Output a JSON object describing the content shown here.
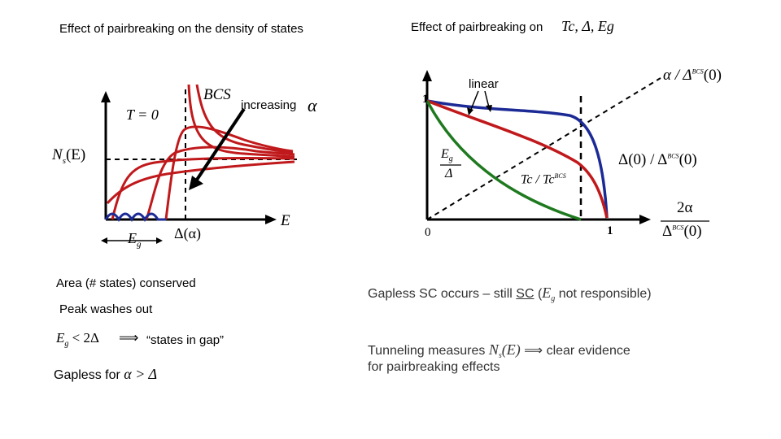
{
  "left_panel": {
    "title": "Effect of pairbreaking on the density of states",
    "ylabel_Ns": "N",
    "ylabel_s": "s",
    "ylabel_E": "(E)",
    "T0_label": "T = 0",
    "BCS_label": "BCS",
    "increasing_label": "increasing",
    "alpha_symbol": "α",
    "E_label": "E",
    "Eg_label": "E",
    "Eg_sub": "g",
    "Delta_alpha_label": "Δ(α)"
  },
  "right_panel": {
    "title": "Effect of pairbreaking on",
    "title_math": "Tc, Δ, Eg",
    "linear_label": "linear",
    "one_y": "1",
    "zero": "0",
    "one_x": "1",
    "Eg_frac_top": "E",
    "Eg_frac_sub": "g",
    "Eg_frac_bottom": "Δ",
    "Tc_ratio": "Tc / Tc",
    "Tc_ratio_sup": "BCS",
    "alpha_ratio": "α / Δ",
    "alpha_ratio_sup": "BCS",
    "alpha_ratio_tail": "(0)",
    "delta_ratio": "Δ(0) / Δ",
    "delta_ratio_sup": "BCS",
    "delta_ratio_tail": "(0)",
    "xaxis_num": "2α",
    "xaxis_den": "Δ",
    "xaxis_den_sup": "BCS",
    "xaxis_den_tail": "(0)"
  },
  "notes_left": {
    "area": "Area (# states) conserved",
    "peak": "Peak washes out",
    "eg_ineq_lhs": "E",
    "eg_ineq_sub": "g",
    "eg_ineq_rest": " < 2Δ",
    "implies": "⟹",
    "states_in_gap": "“states in gap”",
    "gapless_prefix": "Gapless for ",
    "gapless_math": "α > Δ"
  },
  "notes_right": {
    "gapless_sc_prefix": "Gapless SC occurs – still ",
    "gapless_sc_ul": "SC",
    "gapless_sc_mid": " (",
    "gapless_sc_eg": "E",
    "gapless_sc_eg_sub": "g",
    "gapless_sc_suffix": " not responsible)",
    "tunneling_prefix": "Tunneling measures ",
    "tunneling_math": "N",
    "tunneling_sub": "s",
    "tunneling_math_tail": "(E)",
    "tunneling_implies": " ⟹ ",
    "tunneling_suffix": "clear evidence",
    "tunneling_line2": "for pairbreaking effects"
  },
  "colors": {
    "red": "#c0191c",
    "blue": "#1c2a96",
    "green": "#1f7a1f",
    "black": "#000000"
  }
}
